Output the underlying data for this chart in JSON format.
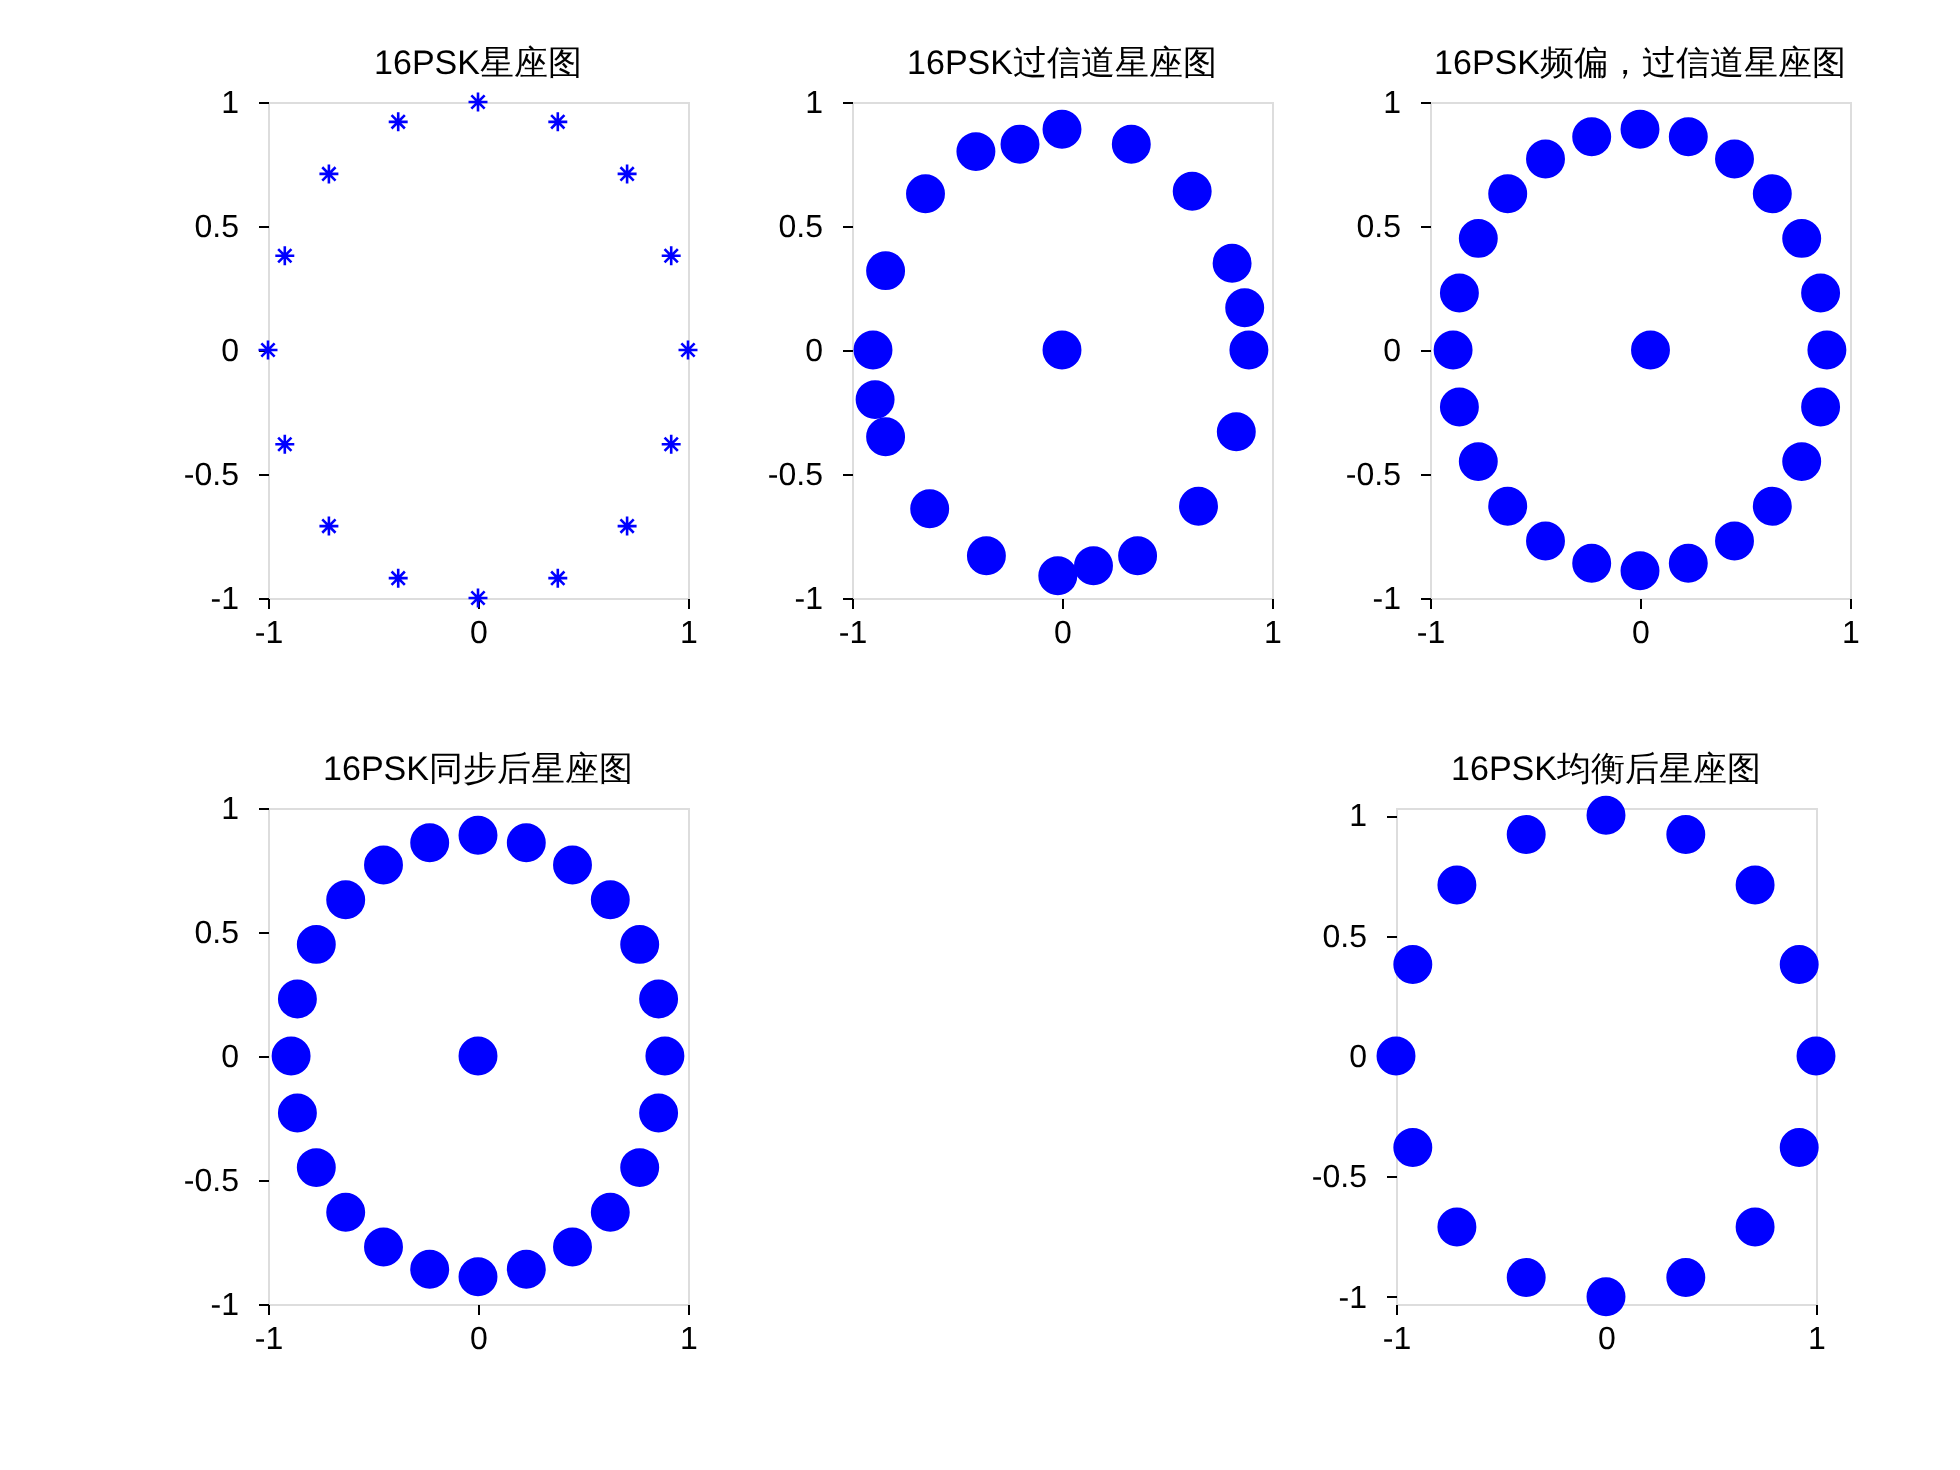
{
  "chart_data": [
    {
      "type": "scatter",
      "title": "16PSK星座图",
      "marker": "cross",
      "grid": false,
      "xlim": [
        -1,
        1
      ],
      "ylim": [
        -1,
        1
      ],
      "xticks": [
        -1,
        0,
        1
      ],
      "yticks": [
        -1,
        -0.5,
        0,
        0.5,
        1
      ],
      "series": [
        {
          "color": "#0000ff",
          "x": [
            1,
            0.92,
            0.71,
            0.38,
            0,
            -0.38,
            -0.71,
            -0.92,
            -1,
            -0.92,
            -0.71,
            -0.38,
            0,
            0.38,
            0.71,
            0.92
          ],
          "values": [
            0,
            0.38,
            0.71,
            0.92,
            1,
            0.92,
            0.71,
            0.38,
            0,
            -0.38,
            -0.71,
            -0.92,
            -1,
            -0.92,
            -0.71,
            -0.38
          ]
        }
      ]
    },
    {
      "type": "scatter",
      "title": "16PSK过信道星座图",
      "marker": "circle",
      "grid": false,
      "xlim": [
        -1,
        1
      ],
      "ylim": [
        -1,
        1
      ],
      "xticks": [
        -1,
        0,
        1
      ],
      "yticks": [
        -1,
        -0.5,
        0,
        0.5,
        1
      ],
      "series": [
        {
          "color": "#0000ff",
          "x": [
            -0.41,
            -0.2,
            0,
            0.33,
            0.62,
            0.81,
            0.87,
            0.89,
            0.83,
            0.65,
            0.36,
            0.15,
            -0.02,
            -0.36,
            -0.63,
            -0.84,
            -0.89,
            -0.9,
            -0.84,
            -0.65,
            0
          ],
          "values": [
            0.8,
            0.83,
            0.89,
            0.83,
            0.64,
            0.35,
            0.17,
            0,
            -0.33,
            -0.63,
            -0.83,
            -0.87,
            -0.91,
            -0.83,
            -0.64,
            -0.35,
            -0.2,
            0,
            0.32,
            0.63,
            0
          ]
        }
      ]
    },
    {
      "type": "scatter",
      "title": "16PSK频偏，过信道星座图",
      "marker": "circle",
      "grid": false,
      "xlim": [
        -1,
        1
      ],
      "ylim": [
        -1,
        1
      ],
      "xticks": [
        -1,
        0,
        1
      ],
      "yticks": [
        -1,
        -0.5,
        0,
        0.5,
        1
      ],
      "series": [
        {
          "color": "#0000ff",
          "x": [
            0.89,
            0.86,
            0.77,
            0.63,
            0.45,
            0.23,
            0,
            -0.23,
            -0.45,
            -0.63,
            -0.77,
            -0.86,
            -0.89,
            -0.86,
            -0.77,
            -0.63,
            -0.45,
            -0.23,
            0,
            0.23,
            0.45,
            0.63,
            0.77,
            0.86,
            0.05
          ],
          "values": [
            0,
            0.23,
            0.45,
            0.63,
            0.77,
            0.86,
            0.89,
            0.86,
            0.77,
            0.63,
            0.45,
            0.23,
            0,
            -0.23,
            -0.45,
            -0.63,
            -0.77,
            -0.86,
            -0.89,
            -0.86,
            -0.77,
            -0.63,
            -0.45,
            -0.23,
            0
          ]
        }
      ]
    },
    {
      "type": "scatter",
      "title": "16PSK同步后星座图",
      "marker": "circle",
      "grid": false,
      "xlim": [
        -1,
        1
      ],
      "ylim": [
        -1,
        1
      ],
      "xticks": [
        -1,
        0,
        1
      ],
      "yticks": [
        -1,
        -0.5,
        0,
        0.5,
        1
      ],
      "series": [
        {
          "color": "#0000ff",
          "x": [
            0.89,
            0.86,
            0.77,
            0.63,
            0.45,
            0.23,
            0,
            -0.23,
            -0.45,
            -0.63,
            -0.77,
            -0.86,
            -0.89,
            -0.86,
            -0.77,
            -0.63,
            -0.45,
            -0.23,
            0,
            0.23,
            0.45,
            0.63,
            0.77,
            0.86,
            0
          ],
          "values": [
            0,
            0.23,
            0.45,
            0.63,
            0.77,
            0.86,
            0.89,
            0.86,
            0.77,
            0.63,
            0.45,
            0.23,
            0,
            -0.23,
            -0.45,
            -0.63,
            -0.77,
            -0.86,
            -0.89,
            -0.86,
            -0.77,
            -0.63,
            -0.45,
            -0.23,
            0
          ]
        }
      ]
    },
    {
      "type": "scatter",
      "title": "16PSK均衡后星座图",
      "marker": "circle",
      "grid": false,
      "xlim": [
        -1,
        1
      ],
      "ylim": [
        -1.03,
        1.03
      ],
      "xticks": [
        -1,
        0,
        1
      ],
      "yticks": [
        -1,
        -0.5,
        0,
        0.5,
        1
      ],
      "series": [
        {
          "color": "#0000ff",
          "x": [
            1,
            0.92,
            0.71,
            0.38,
            0,
            -0.38,
            -0.71,
            -0.92,
            -1,
            -0.92,
            -0.71,
            -0.38,
            0,
            0.38,
            0.71,
            0.92
          ],
          "values": [
            0,
            0.38,
            0.71,
            0.92,
            1,
            0.92,
            0.71,
            0.38,
            0,
            -0.38,
            -0.71,
            -0.92,
            -1,
            -0.92,
            -0.71,
            -0.38
          ]
        }
      ]
    }
  ]
}
